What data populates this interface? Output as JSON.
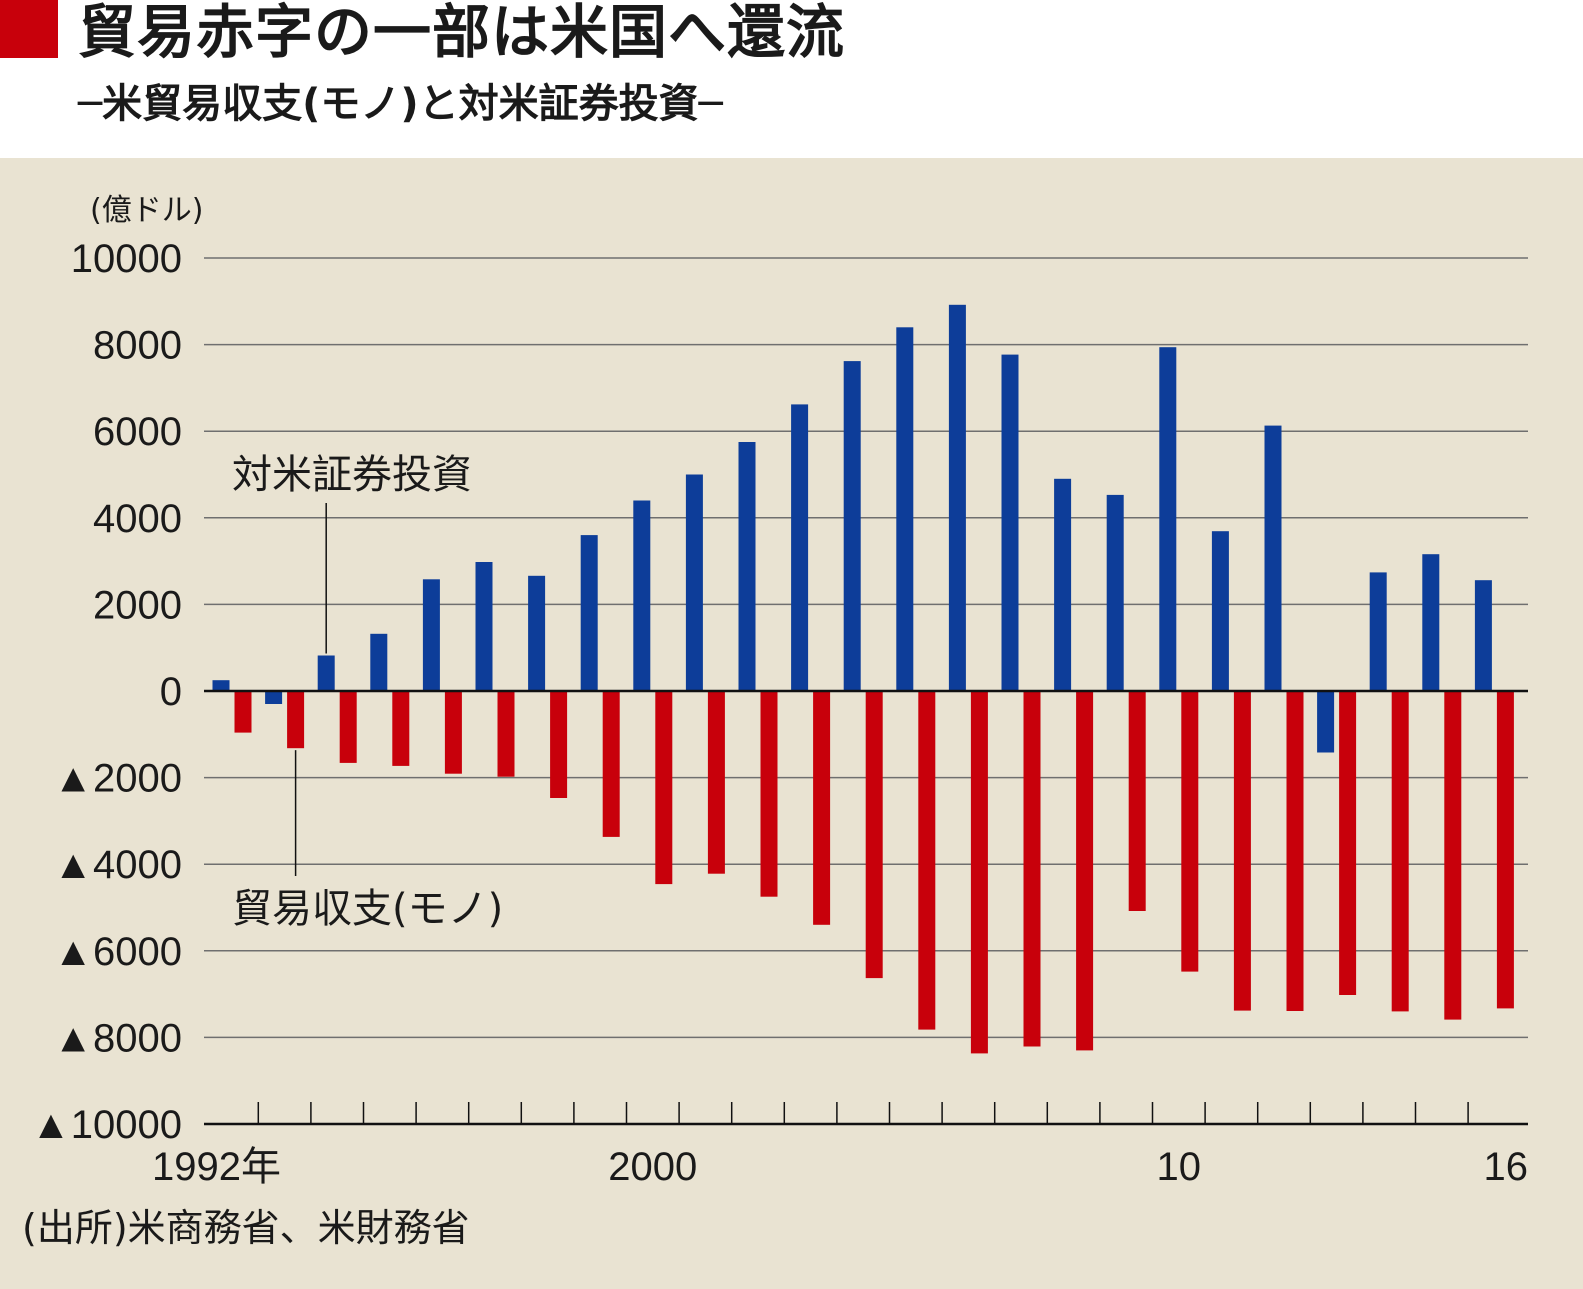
{
  "header": {
    "title": "貿易赤字の一部は米国へ還流",
    "subtitle": "─米貿易収支(モノ)と対米証券投資─"
  },
  "colors": {
    "accent": "#c8000b",
    "background": "#e9e3d2",
    "investment": "#0d3d99",
    "trade": "#c8000b"
  },
  "chart_data": {
    "type": "bar",
    "unit_label": "(億ドル)",
    "categories": [
      "1992",
      "1993",
      "1994",
      "1995",
      "1996",
      "1997",
      "1998",
      "1999",
      "2000",
      "2001",
      "2002",
      "2003",
      "2004",
      "2005",
      "2006",
      "2007",
      "2008",
      "2009",
      "2010",
      "2011",
      "2012",
      "2013",
      "2014",
      "2015",
      "2016"
    ],
    "series": [
      {
        "name": "対米証券投資",
        "color": "#0d3d99",
        "values": [
          250,
          -300,
          820,
          1320,
          2580,
          2980,
          2660,
          3600,
          4400,
          5000,
          5750,
          6620,
          7620,
          8400,
          8920,
          7770,
          4900,
          4530,
          7940,
          3690,
          6130,
          -1420,
          2740,
          3160,
          2560
        ]
      },
      {
        "name": "貿易収支(モノ)",
        "color": "#c8000b",
        "values": [
          -960,
          -1320,
          -1660,
          -1730,
          -1910,
          -1980,
          -2470,
          -3370,
          -4460,
          -4220,
          -4750,
          -5400,
          -6630,
          -7820,
          -8370,
          -8210,
          -8300,
          -5080,
          -6480,
          -7380,
          -7390,
          -7020,
          -7400,
          -7590,
          -7330
        ]
      }
    ],
    "ylim": [
      -10000,
      10000
    ],
    "ytick_values": [
      10000,
      8000,
      6000,
      4000,
      2000,
      0,
      -2000,
      -4000,
      -6000,
      -8000,
      -10000
    ],
    "ytick_labels": [
      "10000",
      "8000",
      "6000",
      "4000",
      "2000",
      "0",
      "▲2000",
      "▲4000",
      "▲6000",
      "▲8000",
      "▲10000"
    ],
    "xtick_labels": [
      {
        "category": "1992",
        "label": "1992年"
      },
      {
        "category": "2000",
        "label": "2000"
      },
      {
        "category": "2010",
        "label": "10"
      },
      {
        "category": "2016",
        "label": "16"
      }
    ],
    "annotations": [
      {
        "text": "対米証券投資",
        "series": 0,
        "category": "1994"
      },
      {
        "text": "貿易収支(モノ)",
        "series": 1,
        "category": "1993"
      }
    ],
    "grid": true,
    "xlabel": "",
    "ylabel": ""
  },
  "footer": {
    "source": "(出所)米商務省、米財務省"
  }
}
